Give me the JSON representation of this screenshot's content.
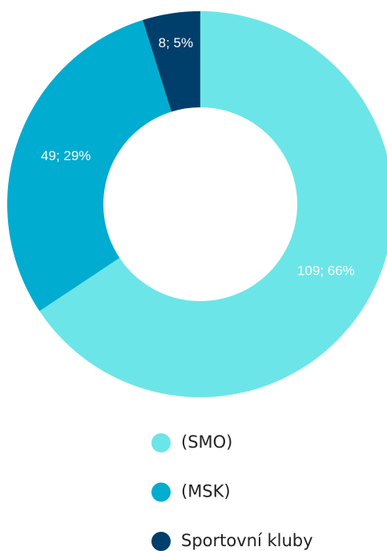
{
  "chart_data": {
    "type": "donut",
    "categories": [
      "(SMO)",
      "(MSK)",
      "Sportovní kluby"
    ],
    "values": [
      109,
      49,
      8
    ],
    "value_labels": [
      "109; 66%",
      "49; 29%",
      "8; 5%"
    ],
    "colors": [
      "#6ce5e8",
      "#00acd0",
      "#003f6b"
    ]
  }
}
